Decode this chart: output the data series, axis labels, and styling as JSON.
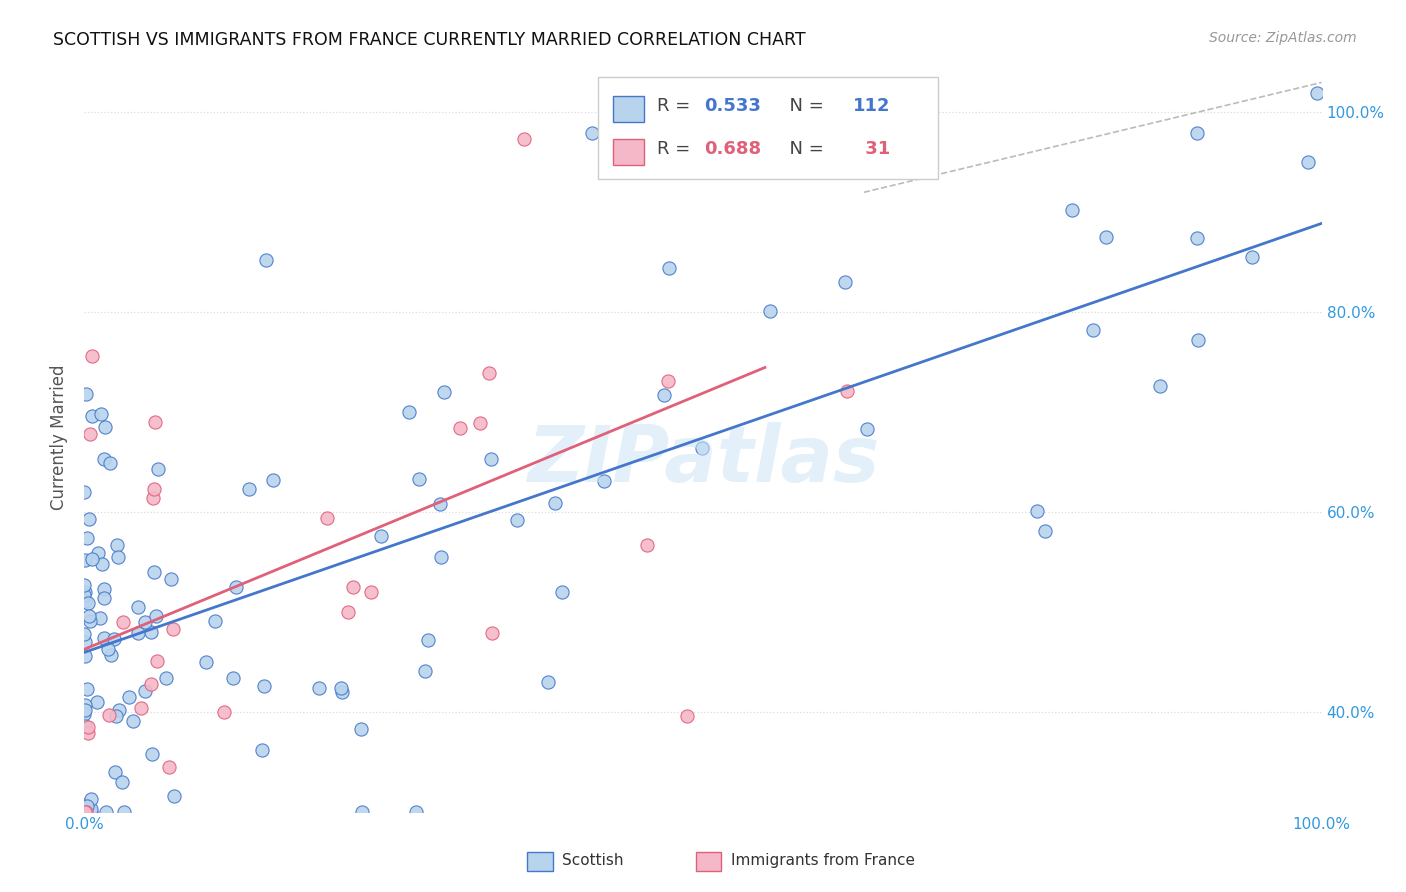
{
  "title": "SCOTTISH VS IMMIGRANTS FROM FRANCE CURRENTLY MARRIED CORRELATION CHART",
  "source": "Source: ZipAtlas.com",
  "ylabel": "Currently Married",
  "xlim": [
    0,
    1
  ],
  "ylim": [
    0.3,
    1.05
  ],
  "scottish_R": 0.533,
  "scottish_N": 112,
  "france_R": 0.688,
  "france_N": 31,
  "legend_labels": [
    "Scottish",
    "Immigrants from France"
  ],
  "scottish_color": "#b8d4ec",
  "france_color": "#f5b8c8",
  "scottish_line_color": "#4477cc",
  "france_line_color": "#e0607a",
  "diagonal_color": "#bbbbbb",
  "ytick_labels": [
    "40.0%",
    "60.0%",
    "80.0%",
    "100.0%"
  ],
  "ytick_values": [
    0.4,
    0.6,
    0.8,
    1.0
  ],
  "background_color": "#ffffff",
  "grid_color": "#dddddd"
}
